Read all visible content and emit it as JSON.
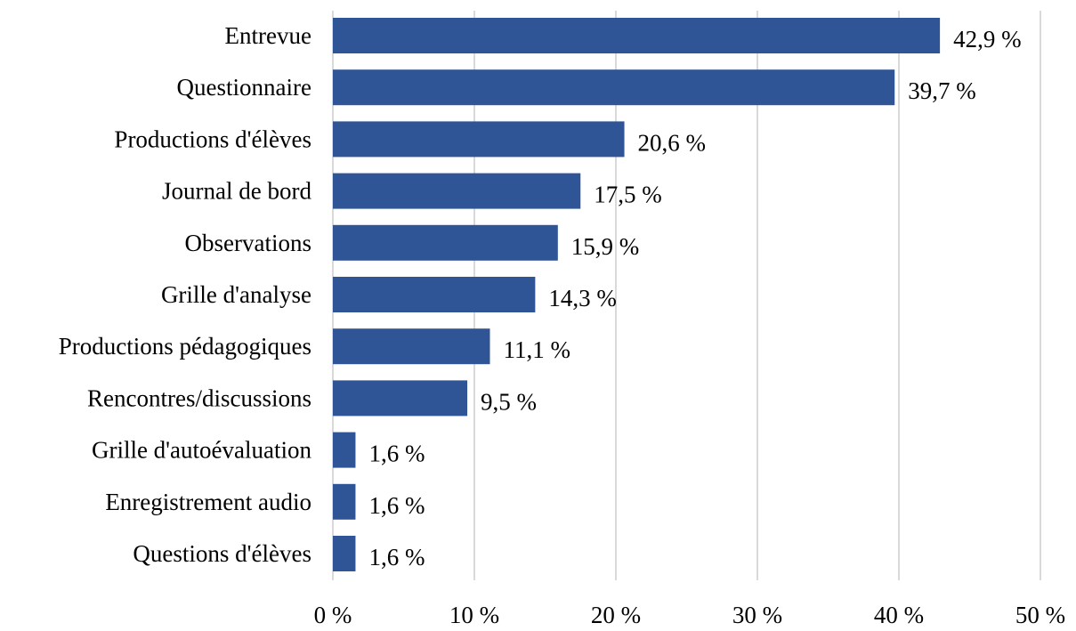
{
  "chart_data": {
    "type": "bar",
    "orientation": "horizontal",
    "categories": [
      "Entrevue",
      "Questionnaire",
      "Productions d'élèves",
      "Journal de bord",
      "Observations",
      "Grille d'analyse",
      "Productions pédagogiques",
      "Rencontres/discussions",
      "Grille d'autoévaluation",
      "Enregistrement audio",
      "Questions d'élèves"
    ],
    "values": [
      42.9,
      39.7,
      20.6,
      17.5,
      15.9,
      14.3,
      11.1,
      9.5,
      1.6,
      1.6,
      1.6
    ],
    "data_labels": [
      "42,9 %",
      "39,7 %",
      "20,6 %",
      "17,5 %",
      "15,9 %",
      "14,3 %",
      "11,1 %",
      "9,5 %",
      "1,6 %",
      "1,6 %",
      "1,6 %"
    ],
    "xlim": [
      0,
      50
    ],
    "xticks": [
      0,
      10,
      20,
      30,
      40,
      50
    ],
    "xtick_labels": [
      "0 %",
      "10 %",
      "20 %",
      "30 %",
      "40 %",
      "50 %"
    ],
    "grid": "vertical",
    "legend": "none",
    "bar_color": "#2F5597",
    "grid_color": "#D9D9D9",
    "title": "",
    "xlabel": "",
    "ylabel": ""
  }
}
